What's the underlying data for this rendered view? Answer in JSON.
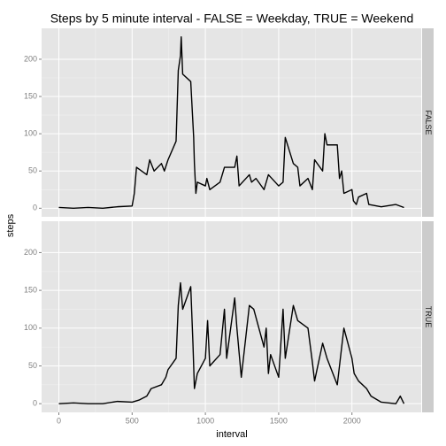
{
  "chart_data": [
    {
      "type": "line",
      "title": "Steps by 5 minute interval - FALSE = Weekday, TRUE = Weekend",
      "ylabel": "steps",
      "panel_label": "FALSE",
      "color": "#000000",
      "grid": true,
      "x": [
        0,
        100,
        200,
        300,
        400,
        500,
        515,
        530,
        600,
        620,
        650,
        700,
        720,
        745,
        800,
        815,
        830,
        835,
        845,
        900,
        920,
        925,
        935,
        945,
        1000,
        1010,
        1030,
        1100,
        1130,
        1200,
        1215,
        1230,
        1300,
        1315,
        1345,
        1400,
        1430,
        1500,
        1530,
        1545,
        1600,
        1630,
        1645,
        1700,
        1730,
        1745,
        1800,
        1815,
        1830,
        1900,
        1915,
        1930,
        1945,
        2000,
        2010,
        2030,
        2045,
        2100,
        2115,
        2200,
        2300,
        2355
      ],
      "values": [
        1,
        0,
        1,
        0,
        2,
        3,
        20,
        55,
        45,
        65,
        50,
        60,
        50,
        65,
        90,
        185,
        205,
        230,
        180,
        170,
        95,
        60,
        20,
        35,
        30,
        40,
        25,
        35,
        55,
        55,
        70,
        30,
        45,
        35,
        40,
        25,
        45,
        30,
        35,
        95,
        60,
        55,
        30,
        40,
        25,
        65,
        50,
        100,
        85,
        85,
        40,
        50,
        20,
        25,
        10,
        5,
        15,
        20,
        5,
        2,
        5,
        1
      ],
      "xlim": [
        -117.75,
        2472.75
      ],
      "ylim": [
        -11.5,
        241.5
      ],
      "xticks": [
        0,
        500,
        1000,
        1500,
        2000
      ],
      "yticks": [
        0,
        50,
        100,
        150,
        200
      ]
    },
    {
      "type": "line",
      "xlabel": "interval",
      "panel_label": "TRUE",
      "color": "#000000",
      "grid": true,
      "x": [
        0,
        100,
        200,
        300,
        400,
        500,
        550,
        600,
        630,
        700,
        730,
        745,
        800,
        815,
        830,
        845,
        900,
        915,
        925,
        945,
        1000,
        1015,
        1030,
        1100,
        1130,
        1145,
        1200,
        1215,
        1245,
        1300,
        1330,
        1400,
        1415,
        1430,
        1445,
        1500,
        1530,
        1545,
        1600,
        1630,
        1700,
        1730,
        1745,
        1800,
        1830,
        1900,
        1945,
        2000,
        2015,
        2045,
        2100,
        2130,
        2200,
        2300,
        2330,
        2355
      ],
      "values": [
        0,
        1,
        0,
        0,
        3,
        2,
        5,
        10,
        20,
        25,
        35,
        45,
        60,
        130,
        160,
        125,
        155,
        80,
        20,
        40,
        60,
        110,
        50,
        65,
        125,
        60,
        140,
        100,
        35,
        130,
        125,
        75,
        100,
        40,
        65,
        35,
        125,
        60,
        130,
        110,
        100,
        55,
        30,
        80,
        60,
        25,
        100,
        60,
        40,
        30,
        20,
        10,
        2,
        0,
        10,
        0
      ],
      "xlim": [
        -117.75,
        2472.75
      ],
      "ylim": [
        -11.5,
        241.5
      ],
      "xticks": [
        0,
        500,
        1000,
        1500,
        2000
      ],
      "yticks": [
        0,
        50,
        100,
        150,
        200
      ]
    }
  ]
}
